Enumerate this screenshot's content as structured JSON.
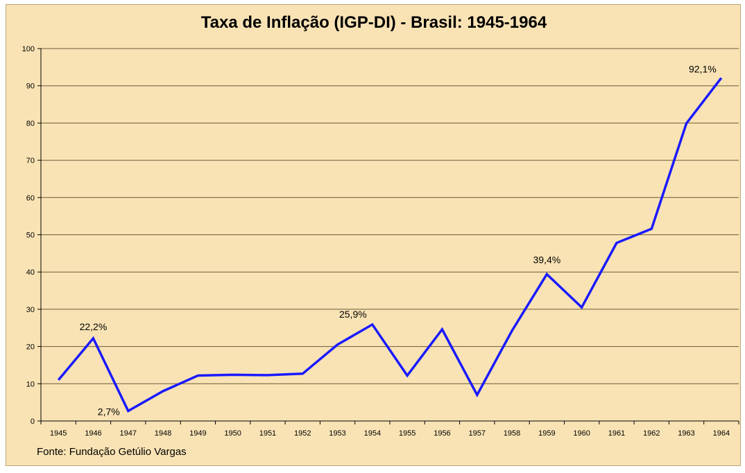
{
  "chart_data": {
    "type": "line",
    "title": "Taxa de Inflação (IGP-DI) - Brasil: 1945-1964",
    "source": "Fonte: Fundação Getúlio Vargas",
    "x": [
      "1945",
      "1946",
      "1947",
      "1948",
      "1949",
      "1950",
      "1951",
      "1952",
      "1953",
      "1954",
      "1955",
      "1956",
      "1957",
      "1958",
      "1959",
      "1960",
      "1961",
      "1962",
      "1963",
      "1964"
    ],
    "series": [
      {
        "values": [
          11,
          22.2,
          2.7,
          8,
          12.2,
          12.4,
          12.3,
          12.7,
          20.5,
          25.9,
          12.2,
          24.6,
          7,
          24.2,
          39.4,
          30.5,
          47.8,
          51.6,
          79.9,
          92.1
        ]
      }
    ],
    "ylim": [
      0,
      100
    ],
    "yticks": [
      "0",
      "10",
      "20",
      "30",
      "40",
      "50",
      "60",
      "70",
      "80",
      "90",
      "100"
    ],
    "grid": true,
    "line_color": "#1a1aff",
    "annotations": [
      {
        "index": 1,
        "text": "22,2%"
      },
      {
        "index": 2,
        "text": "2,7%"
      },
      {
        "index": 9,
        "text": "25,9%"
      },
      {
        "index": 14,
        "text": "39,4%"
      },
      {
        "index": 19,
        "text": "92,1%"
      }
    ]
  }
}
